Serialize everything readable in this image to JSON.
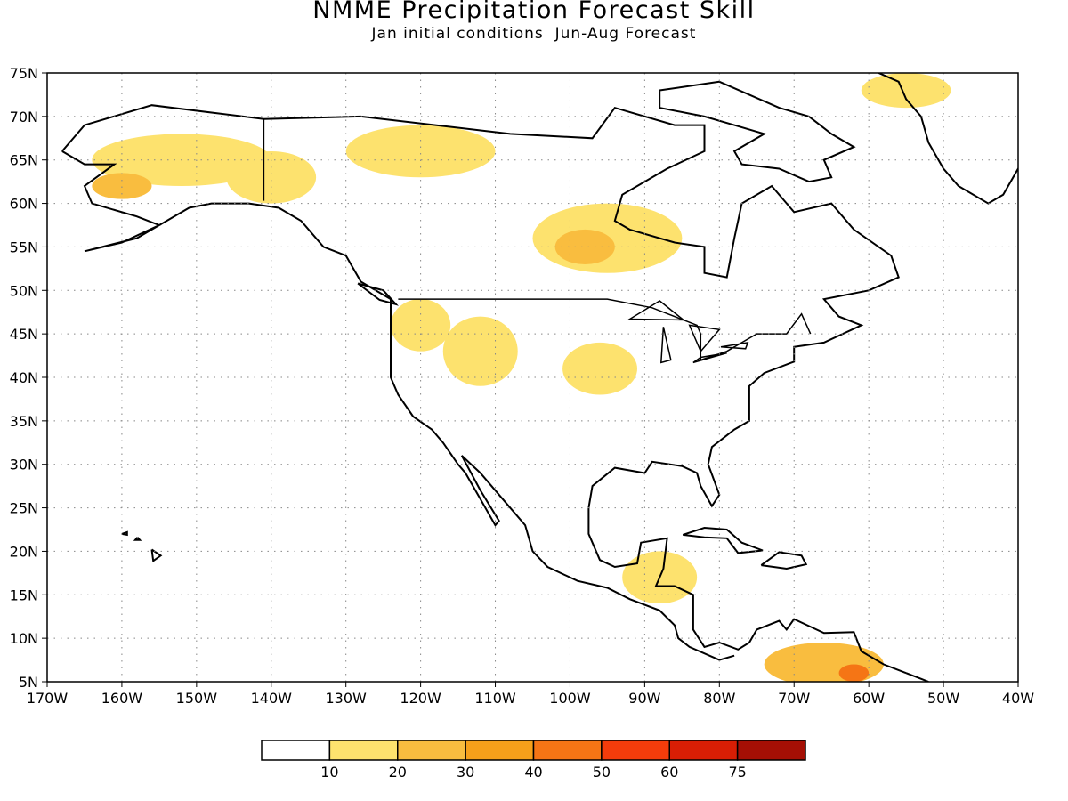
{
  "header": {
    "title": "NMME Precipitation Forecast Skill",
    "subtitle": "Jan initial conditions  Jun-Aug Forecast"
  },
  "map": {
    "lon_range": [
      -170,
      -40
    ],
    "lat_range": [
      5,
      75
    ],
    "lat_ticks": [
      "75N",
      "70N",
      "65N",
      "60N",
      "55N",
      "50N",
      "45N",
      "40N",
      "35N",
      "30N",
      "25N",
      "20N",
      "15N",
      "10N",
      "5N"
    ],
    "lon_ticks": [
      "170W",
      "160W",
      "150W",
      "140W",
      "130W",
      "120W",
      "110W",
      "100W",
      "90W",
      "80W",
      "70W",
      "60W",
      "50W",
      "40W"
    ],
    "gridlines": "dotted"
  },
  "colorbar": {
    "colors": [
      "#ffffff",
      "#fde26e",
      "#f9bd3f",
      "#f6a01a",
      "#f57515",
      "#f43c0b",
      "#d81e05",
      "#a50f05"
    ],
    "labels": [
      "10",
      "20",
      "30",
      "40",
      "50",
      "60",
      "75"
    ]
  },
  "skill_regions": [
    {
      "lon": -152,
      "lat": 65,
      "rx": 12,
      "ry": 3,
      "level": 1
    },
    {
      "lon": -160,
      "lat": 62,
      "rx": 4,
      "ry": 1.5,
      "level": 2
    },
    {
      "lon": -140,
      "lat": 63,
      "rx": 6,
      "ry": 3,
      "level": 1
    },
    {
      "lon": -120,
      "lat": 66,
      "rx": 10,
      "ry": 3,
      "level": 1
    },
    {
      "lon": -95,
      "lat": 56,
      "rx": 10,
      "ry": 4,
      "level": 1
    },
    {
      "lon": -98,
      "lat": 55,
      "rx": 4,
      "ry": 2,
      "level": 2
    },
    {
      "lon": -120,
      "lat": 46,
      "rx": 4,
      "ry": 3,
      "level": 1
    },
    {
      "lon": -112,
      "lat": 43,
      "rx": 5,
      "ry": 4,
      "level": 1
    },
    {
      "lon": -96,
      "lat": 41,
      "rx": 5,
      "ry": 3,
      "level": 1
    },
    {
      "lon": -88,
      "lat": 17,
      "rx": 5,
      "ry": 3,
      "level": 1
    },
    {
      "lon": -66,
      "lat": 7,
      "rx": 8,
      "ry": 2.5,
      "level": 2
    },
    {
      "lon": -62,
      "lat": 6,
      "rx": 2,
      "ry": 1,
      "level": 4
    },
    {
      "lon": -55,
      "lat": 73,
      "rx": 6,
      "ry": 2,
      "level": 1
    }
  ]
}
